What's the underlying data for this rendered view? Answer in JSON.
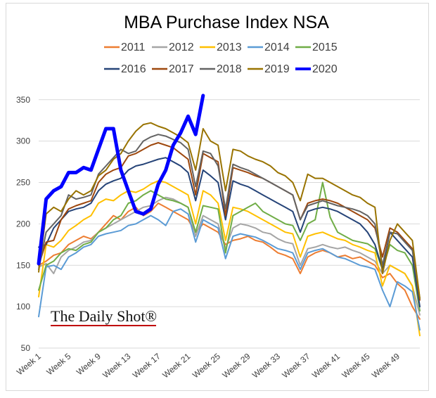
{
  "chart_data": {
    "type": "line",
    "title": "MBA Purchase Index NSA",
    "xlabel": "",
    "ylabel": "",
    "ylim": [
      50,
      360
    ],
    "y_ticks": [
      50,
      100,
      150,
      200,
      250,
      300,
      350
    ],
    "x_tick_labels": [
      "Week 1",
      "Week 5",
      "Week 9",
      "Week 13",
      "Week 17",
      "Week 21",
      "Week 25",
      "Week 29",
      "Week 33",
      "Week 37",
      "Week 41",
      "Week 45",
      "Week 49"
    ],
    "x_tick_weeks": [
      1,
      5,
      9,
      13,
      17,
      21,
      25,
      29,
      33,
      37,
      41,
      45,
      49
    ],
    "x_max_week": 52,
    "grid": true,
    "legend_position": "top",
    "watermark": "The Daily Shot®",
    "series": [
      {
        "name": "2011",
        "color": "#ED7D31",
        "width": 2,
        "values": [
          150,
          155,
          162,
          165,
          175,
          180,
          185,
          182,
          190,
          200,
          210,
          205,
          215,
          220,
          210,
          215,
          225,
          220,
          215,
          210,
          205,
          190,
          200,
          195,
          190,
          175,
          180,
          182,
          185,
          180,
          178,
          172,
          165,
          162,
          158,
          140,
          160,
          165,
          168,
          165,
          160,
          162,
          158,
          160,
          155,
          150,
          135,
          140,
          128,
          120,
          100,
          85
        ]
      },
      {
        "name": "2012",
        "color": "#A5A5A5",
        "width": 2,
        "values": [
          148,
          152,
          140,
          160,
          168,
          172,
          178,
          180,
          190,
          195,
          200,
          205,
          210,
          215,
          220,
          222,
          228,
          232,
          230,
          225,
          220,
          185,
          210,
          205,
          200,
          170,
          195,
          200,
          198,
          195,
          190,
          188,
          182,
          178,
          176,
          150,
          170,
          172,
          175,
          172,
          170,
          172,
          168,
          165,
          160,
          155,
          140,
          150,
          145,
          140,
          125,
          90
        ]
      },
      {
        "name": "2013",
        "color": "#FFC000",
        "width": 2,
        "values": [
          112,
          175,
          172,
          180,
          192,
          198,
          205,
          210,
          225,
          230,
          228,
          235,
          240,
          238,
          242,
          248,
          252,
          250,
          245,
          240,
          235,
          200,
          240,
          235,
          225,
          180,
          220,
          218,
          215,
          210,
          205,
          200,
          195,
          190,
          188,
          160,
          185,
          188,
          190,
          186,
          182,
          180,
          175,
          172,
          168,
          165,
          125,
          150,
          145,
          140,
          125,
          65
        ]
      },
      {
        "name": "2014",
        "color": "#5B9BD5",
        "width": 2,
        "values": [
          88,
          148,
          150,
          145,
          160,
          165,
          172,
          175,
          185,
          188,
          190,
          192,
          198,
          200,
          205,
          210,
          205,
          198,
          215,
          218,
          212,
          178,
          205,
          200,
          195,
          158,
          185,
          188,
          186,
          184,
          180,
          175,
          170,
          168,
          165,
          145,
          165,
          168,
          170,
          165,
          160,
          158,
          154,
          150,
          148,
          145,
          120,
          100,
          130,
          125,
          118,
          72
        ]
      },
      {
        "name": "2015",
        "color": "#70AD47",
        "width": 2,
        "values": [
          120,
          150,
          155,
          165,
          170,
          168,
          175,
          178,
          190,
          195,
          205,
          210,
          225,
          228,
          235,
          240,
          235,
          230,
          228,
          225,
          220,
          190,
          222,
          220,
          218,
          165,
          210,
          215,
          220,
          225,
          215,
          210,
          205,
          200,
          198,
          180,
          200,
          205,
          250,
          208,
          190,
          185,
          180,
          178,
          176,
          170,
          145,
          175,
          168,
          165,
          150,
          95
        ]
      },
      {
        "name": "2016",
        "color": "#264478",
        "width": 2,
        "values": [
          172,
          175,
          195,
          205,
          215,
          218,
          220,
          225,
          240,
          248,
          252,
          255,
          265,
          270,
          272,
          275,
          278,
          280,
          275,
          270,
          262,
          228,
          265,
          258,
          250,
          205,
          252,
          248,
          245,
          240,
          235,
          230,
          225,
          220,
          215,
          190,
          215,
          218,
          220,
          218,
          215,
          210,
          205,
          200,
          190,
          175,
          145,
          190,
          180,
          170,
          160,
          100
        ]
      },
      {
        "name": "2017",
        "color": "#9E480E",
        "width": 2,
        "values": [
          150,
          178,
          180,
          205,
          218,
          222,
          225,
          228,
          250,
          260,
          265,
          268,
          282,
          285,
          290,
          295,
          298,
          295,
          292,
          285,
          278,
          235,
          285,
          280,
          275,
          210,
          268,
          265,
          262,
          258,
          255,
          250,
          245,
          240,
          235,
          205,
          225,
          228,
          230,
          228,
          225,
          220,
          215,
          210,
          205,
          195,
          160,
          195,
          190,
          180,
          170,
          108
        ]
      },
      {
        "name": "2018",
        "color": "#636363",
        "width": 2,
        "values": [
          145,
          190,
          200,
          210,
          235,
          230,
          232,
          235,
          260,
          270,
          280,
          290,
          285,
          288,
          300,
          305,
          308,
          306,
          302,
          298,
          290,
          245,
          288,
          285,
          270,
          218,
          272,
          268,
          265,
          260,
          255,
          250,
          245,
          240,
          235,
          205,
          222,
          225,
          228,
          225,
          222,
          220,
          218,
          215,
          210,
          200,
          150,
          190,
          188,
          178,
          168,
          110
        ]
      },
      {
        "name": "2019",
        "color": "#997300",
        "width": 2,
        "values": [
          142,
          212,
          220,
          215,
          230,
          240,
          235,
          240,
          258,
          265,
          278,
          285,
          300,
          312,
          320,
          322,
          318,
          315,
          310,
          305,
          298,
          265,
          315,
          300,
          295,
          240,
          290,
          288,
          282,
          278,
          275,
          270,
          262,
          258,
          250,
          228,
          260,
          255,
          255,
          250,
          245,
          240,
          235,
          232,
          225,
          220,
          140,
          180,
          200,
          190,
          180,
          110
        ]
      },
      {
        "name": "2020",
        "color": "#0000FF",
        "width": 5,
        "values": [
          152,
          230,
          240,
          245,
          262,
          262,
          268,
          265,
          290,
          315,
          315,
          265,
          240,
          215,
          212,
          218,
          248,
          265,
          295,
          310,
          330,
          308,
          355
        ]
      }
    ]
  }
}
